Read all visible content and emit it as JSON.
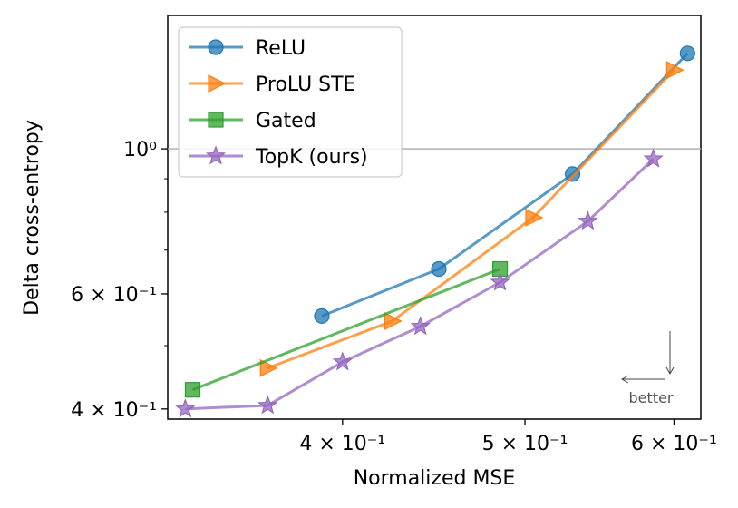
{
  "chart_data": {
    "type": "line",
    "xlabel": "Normalized MSE",
    "ylabel": "Delta cross-entropy",
    "xscale": "log",
    "yscale": "log",
    "xlim": [
      0.323,
      0.62
    ],
    "ylim": [
      0.386,
      1.6
    ],
    "x_ticks": [
      {
        "value": 0.4,
        "label": "4 × 10⁻¹"
      },
      {
        "value": 0.5,
        "label": "5 × 10⁻¹"
      },
      {
        "value": 0.6,
        "label": "6 × 10⁻¹"
      }
    ],
    "y_ticks": [
      {
        "value": 0.4,
        "label": "4 × 10⁻¹"
      },
      {
        "value": 0.6,
        "label": "6 × 10⁻¹"
      },
      {
        "value": 1.0,
        "label": "10⁰"
      }
    ],
    "reference_line": {
      "y": 1.0,
      "color": "#b0b0b0"
    },
    "legend_position": "top-left",
    "series": [
      {
        "name": "ReLU",
        "color": "#1f77b4",
        "marker": "circle",
        "x": [
          0.39,
          0.45,
          0.53,
          0.61
        ],
        "y": [
          0.555,
          0.655,
          0.915,
          1.4
        ]
      },
      {
        "name": "ProLU STE",
        "color": "#ff7f0e",
        "marker": "triangle-right",
        "x": [
          0.365,
          0.425,
          0.505,
          0.6
        ],
        "y": [
          0.462,
          0.545,
          0.785,
          1.32
        ]
      },
      {
        "name": "Gated",
        "color": "#2ca02c",
        "marker": "square",
        "x": [
          0.333,
          0.485
        ],
        "y": [
          0.428,
          0.655
        ]
      },
      {
        "name": "TopK (ours)",
        "color": "#9467bd",
        "marker": "star",
        "x": [
          0.33,
          0.365,
          0.4,
          0.44,
          0.485,
          0.54,
          0.585
        ],
        "y": [
          0.4,
          0.405,
          0.472,
          0.535,
          0.625,
          0.775,
          0.965
        ]
      }
    ],
    "annotation": {
      "text": "better"
    }
  }
}
